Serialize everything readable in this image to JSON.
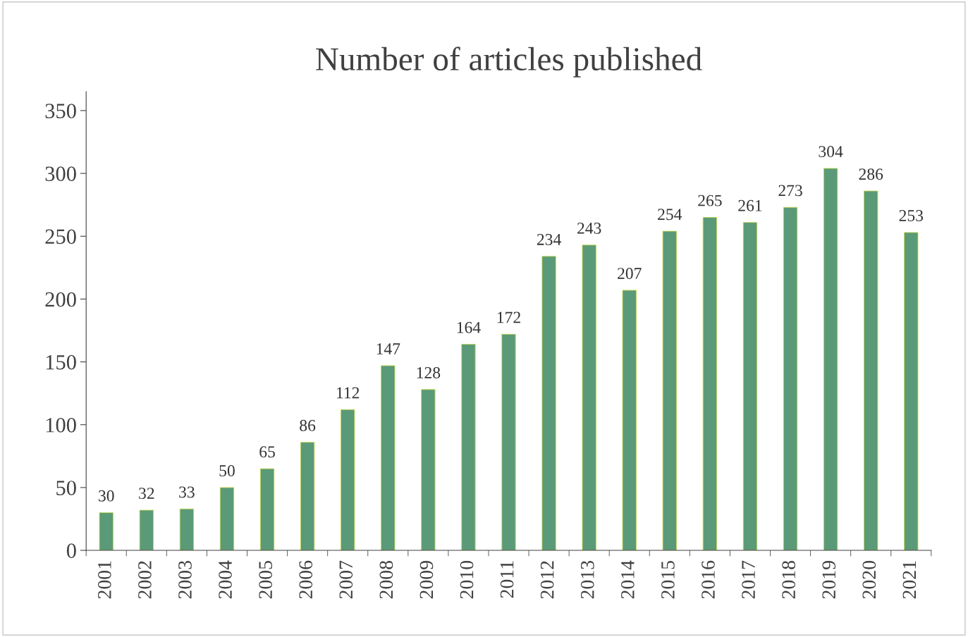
{
  "chart_data": {
    "type": "bar",
    "title": "Number of articles published",
    "categories": [
      "2001",
      "2002",
      "2003",
      "2004",
      "2005",
      "2006",
      "2007",
      "2008",
      "2009",
      "2010",
      "2011",
      "2012",
      "2013",
      "2014",
      "2015",
      "2016",
      "2017",
      "2018",
      "2019",
      "2020",
      "2021"
    ],
    "values": [
      30,
      32,
      33,
      50,
      65,
      86,
      112,
      147,
      128,
      164,
      172,
      234,
      243,
      207,
      254,
      265,
      261,
      273,
      304,
      286,
      253
    ],
    "color": "#5a9a78",
    "ylim": [
      0,
      365
    ],
    "yticks": [
      0,
      50,
      100,
      150,
      200,
      250,
      300,
      350
    ],
    "data_labels": true,
    "grid": false,
    "legend": false
  }
}
